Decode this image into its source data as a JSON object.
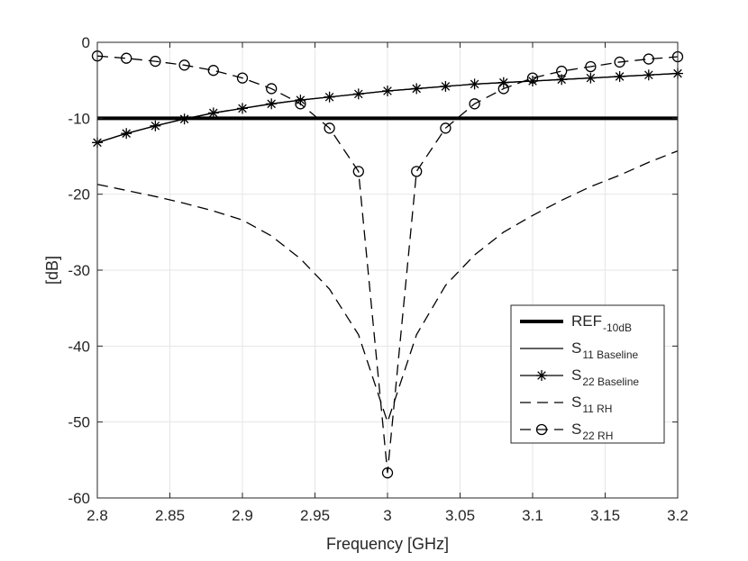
{
  "chart_data": {
    "type": "line",
    "title": "",
    "xlabel": "Frequency [GHz]",
    "ylabel": "[dB]",
    "xlim": [
      2.8,
      3.2
    ],
    "ylim": [
      -60,
      0
    ],
    "grid": true,
    "xticks": [
      2.8,
      2.85,
      2.9,
      2.95,
      3.0,
      3.05,
      3.1,
      3.15,
      3.2
    ],
    "xtick_labels": [
      "2.8",
      "2.85",
      "2.9",
      "2.95",
      "3",
      "3.05",
      "3.1",
      "3.15",
      "3.2"
    ],
    "yticks": [
      0,
      -10,
      -20,
      -30,
      -40,
      -50,
      -60
    ],
    "ytick_labels": [
      "0",
      "-10",
      "-20",
      "-30",
      "-40",
      "-50",
      "-60"
    ],
    "legend_position": "lower-right",
    "x": [
      2.8,
      2.82,
      2.84,
      2.86,
      2.88,
      2.9,
      2.92,
      2.94,
      2.96,
      2.98,
      3.0,
      3.02,
      3.04,
      3.06,
      3.08,
      3.1,
      3.12,
      3.14,
      3.16,
      3.18,
      3.2
    ],
    "series": [
      {
        "name": "REF",
        "subscript": "-10dB",
        "style": "ref",
        "x": [
          2.8,
          3.2
        ],
        "values": [
          -10,
          -10
        ]
      },
      {
        "name": "S",
        "subscript": "11 Baseline",
        "style": "solid",
        "values": [
          -13.2,
          -12.0,
          -11.0,
          -10.1,
          -9.3,
          -8.7,
          -8.1,
          -7.6,
          -7.2,
          -6.8,
          -6.4,
          -6.1,
          -5.8,
          -5.5,
          -5.3,
          -5.1,
          -4.9,
          -4.7,
          -4.5,
          -4.3,
          -4.1
        ]
      },
      {
        "name": "S",
        "subscript": "22 Baseline",
        "style": "solid-star",
        "values": [
          -13.2,
          -12.0,
          -11.0,
          -10.1,
          -9.3,
          -8.7,
          -8.1,
          -7.6,
          -7.2,
          -6.8,
          -6.4,
          -6.1,
          -5.8,
          -5.5,
          -5.3,
          -5.1,
          -4.9,
          -4.7,
          -4.5,
          -4.3,
          -4.1
        ]
      },
      {
        "name": "S",
        "subscript": "11 RH",
        "style": "dashed",
        "values": [
          -18.7,
          -19.5,
          -20.3,
          -21.2,
          -22.2,
          -23.4,
          -25.5,
          -28.5,
          -32.5,
          -38.5,
          -50.0,
          -38.5,
          -32.0,
          -28.0,
          -25.0,
          -22.8,
          -20.8,
          -19.0,
          -17.5,
          -15.8,
          -14.3
        ]
      },
      {
        "name": "S",
        "subscript": "22 RH",
        "style": "dashed-circle",
        "values": [
          -1.8,
          -2.1,
          -2.5,
          -3.0,
          -3.7,
          -4.7,
          -6.1,
          -8.1,
          -11.3,
          -17.0,
          -56.7,
          -17.0,
          -11.3,
          -8.1,
          -6.1,
          -4.7,
          -3.8,
          -3.2,
          -2.6,
          -2.2,
          -1.9
        ]
      }
    ]
  }
}
